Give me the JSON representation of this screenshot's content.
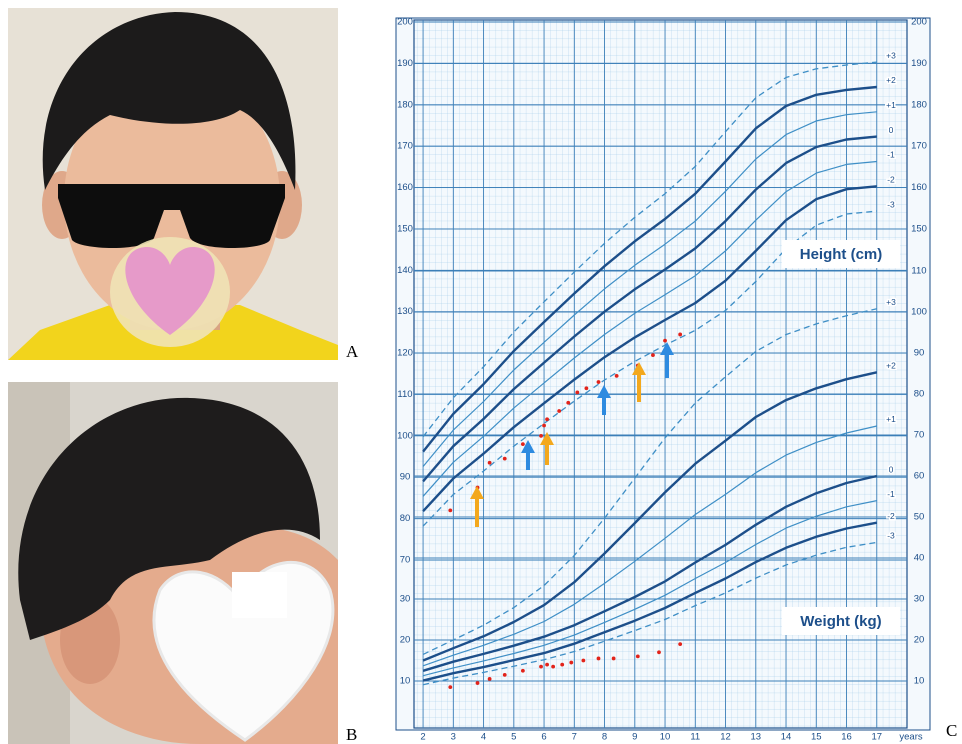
{
  "panel_labels": {
    "a": "A",
    "b": "B",
    "c": "C"
  },
  "chart_data": [
    {
      "type": "line",
      "title": "Height (cm)",
      "xlabel": "years",
      "xlim": [
        1.7,
        18
      ],
      "xticks": [
        2,
        3,
        4,
        5,
        6,
        7,
        8,
        9,
        10,
        11,
        12,
        13,
        14,
        15,
        16,
        17
      ],
      "ylim": [
        70,
        200
      ],
      "yticks": [
        70,
        80,
        90,
        100,
        110,
        120,
        130,
        140,
        150,
        160,
        170,
        180,
        190,
        200
      ],
      "yticks_right": [
        150,
        160,
        170,
        180,
        190,
        200
      ],
      "grid": true,
      "x": [
        2,
        3,
        4,
        5,
        6,
        7,
        8,
        9,
        10,
        11,
        12,
        13,
        14,
        15,
        16,
        17
      ],
      "series": [
        {
          "name": "+3",
          "color": "#3f8fc6",
          "style": "dashed",
          "values": [
            99.8,
            109.2,
            116.7,
            125.1,
            132.4,
            139.6,
            146.5,
            152.8,
            158.5,
            165.1,
            173.5,
            181.7,
            186.6,
            188.7,
            189.6,
            190.3
          ]
        },
        {
          "name": "+2",
          "color": "#1d4f8a",
          "style": "thick",
          "values": [
            96.2,
            105.3,
            112.5,
            120.5,
            127.5,
            134.4,
            141,
            147,
            152.4,
            158.5,
            166.3,
            174.3,
            179.7,
            182.4,
            183.6,
            184.3
          ]
        },
        {
          "name": "+1",
          "color": "#3f8fc6",
          "style": "thin",
          "values": [
            92.6,
            101.4,
            108.3,
            115.9,
            122.6,
            129.2,
            135.5,
            141.2,
            146.3,
            151.9,
            159.1,
            166.9,
            172.8,
            176.1,
            177.6,
            178.3
          ]
        },
        {
          "name": "0",
          "color": "#1d4f8a",
          "style": "thick",
          "values": [
            89,
            97.5,
            104.1,
            111.3,
            117.7,
            124,
            130,
            135.4,
            140.2,
            145.3,
            151.9,
            159.5,
            165.9,
            169.8,
            171.6,
            172.3
          ]
        },
        {
          "name": "-1",
          "color": "#3f8fc6",
          "style": "thin",
          "values": [
            85.4,
            93.6,
            99.9,
            106.7,
            112.8,
            118.8,
            124.5,
            129.6,
            134.1,
            138.7,
            144.7,
            152.1,
            159,
            163.5,
            165.6,
            166.3
          ]
        },
        {
          "name": "-2",
          "color": "#1d4f8a",
          "style": "thick",
          "values": [
            81.8,
            89.7,
            95.7,
            102.1,
            107.9,
            113.6,
            119,
            123.8,
            128,
            132.1,
            137.5,
            144.7,
            152.1,
            157.2,
            159.6,
            160.3
          ]
        },
        {
          "name": "-3",
          "color": "#3f8fc6",
          "style": "dashed",
          "values": [
            78.2,
            85.8,
            91.5,
            97.5,
            103,
            108.4,
            113.5,
            118,
            121.9,
            125.5,
            130.3,
            137.3,
            145.2,
            150.9,
            153.6,
            154.3
          ]
        }
      ],
      "points": {
        "color": "#e2231a",
        "x": [
          2.9,
          3.8,
          4.2,
          4.7,
          5.3,
          5.9,
          6.0,
          6.1,
          6.5,
          6.8,
          7.1,
          7.4,
          7.8,
          8.4,
          9.1,
          9.6,
          10,
          10.5
        ],
        "y": [
          82,
          87.5,
          93.5,
          94.5,
          98,
          100,
          102.5,
          104,
          106,
          108,
          110.5,
          111.5,
          113,
          114.5,
          117,
          119.5,
          123,
          124.5
        ]
      }
    },
    {
      "type": "line",
      "title": "Weight (kg)",
      "ylim": [
        10,
        110
      ],
      "yticks": [
        10,
        20,
        30
      ],
      "yticks_right": [
        10,
        20,
        30,
        40,
        50,
        60,
        70,
        80,
        90,
        100,
        110
      ],
      "grid": true,
      "x": [
        2,
        3,
        4,
        5,
        6,
        7,
        8,
        9,
        10,
        11,
        12,
        13,
        14,
        15,
        16,
        17
      ],
      "series": [
        {
          "name": "+3",
          "color": "#3f8fc6",
          "style": "dashed",
          "values": [
            16.5,
            20.0,
            23.6,
            27.9,
            33.3,
            40.6,
            49.7,
            59.5,
            69.3,
            77.8,
            84.2,
            90.4,
            94.5,
            97.1,
            99.1,
            100.8
          ]
        },
        {
          "name": "+2",
          "color": "#1d4f8a",
          "style": "thick",
          "values": [
            15.0,
            18.0,
            20.9,
            24.4,
            28.5,
            34.1,
            41.1,
            48.5,
            56.0,
            63.0,
            68.6,
            74.4,
            78.5,
            81.4,
            83.6,
            85.3
          ]
        },
        {
          "name": "+1",
          "color": "#3f8fc6",
          "style": "thin",
          "values": [
            13.7,
            16.3,
            18.7,
            21.4,
            24.5,
            28.7,
            33.8,
            39.2,
            44.8,
            50.6,
            55.5,
            60.8,
            65.1,
            68.2,
            70.5,
            72.2
          ]
        },
        {
          "name": "0",
          "color": "#1d4f8a",
          "style": "thick",
          "values": [
            12.5,
            14.7,
            16.6,
            18.6,
            20.8,
            23.6,
            27,
            30.5,
            34.3,
            38.9,
            43.2,
            48.1,
            52.5,
            55.8,
            58.3,
            60
          ]
        },
        {
          "name": "-1",
          "color": "#3f8fc6",
          "style": "thin",
          "values": [
            11.3,
            13.2,
            14.9,
            16.7,
            18.7,
            21.2,
            24.3,
            27.5,
            30.9,
            35.0,
            38.9,
            43.3,
            47.3,
            50.2,
            52.5,
            54.0
          ]
        },
        {
          "name": "-2",
          "color": "#1d4f8a",
          "style": "thick",
          "values": [
            10.1,
            11.9,
            13.4,
            15.1,
            16.8,
            19.1,
            21.9,
            24.7,
            27.8,
            31.5,
            35.0,
            39.0,
            42.5,
            45.2,
            47.2,
            48.6
          ]
        },
        {
          "name": "-3",
          "color": "#3f8fc6",
          "style": "dashed",
          "values": [
            9.1,
            10.7,
            12.1,
            13.6,
            15.2,
            17.2,
            19.7,
            22.3,
            25.0,
            28.4,
            31.5,
            35.1,
            38.3,
            40.7,
            42.6,
            43.8
          ]
        }
      ],
      "points": {
        "color": "#e2231a",
        "x": [
          2.9,
          3.8,
          4.2,
          4.7,
          5.3,
          5.9,
          6.1,
          6.3,
          6.6,
          6.9,
          7.3,
          7.8,
          8.3,
          9.1,
          9.8,
          10.5
        ],
        "y": [
          8.5,
          9.5,
          10.5,
          11.5,
          12.5,
          13.5,
          14,
          13.5,
          14,
          14.5,
          15,
          15.5,
          15.5,
          16,
          17,
          19
        ]
      }
    }
  ]
}
